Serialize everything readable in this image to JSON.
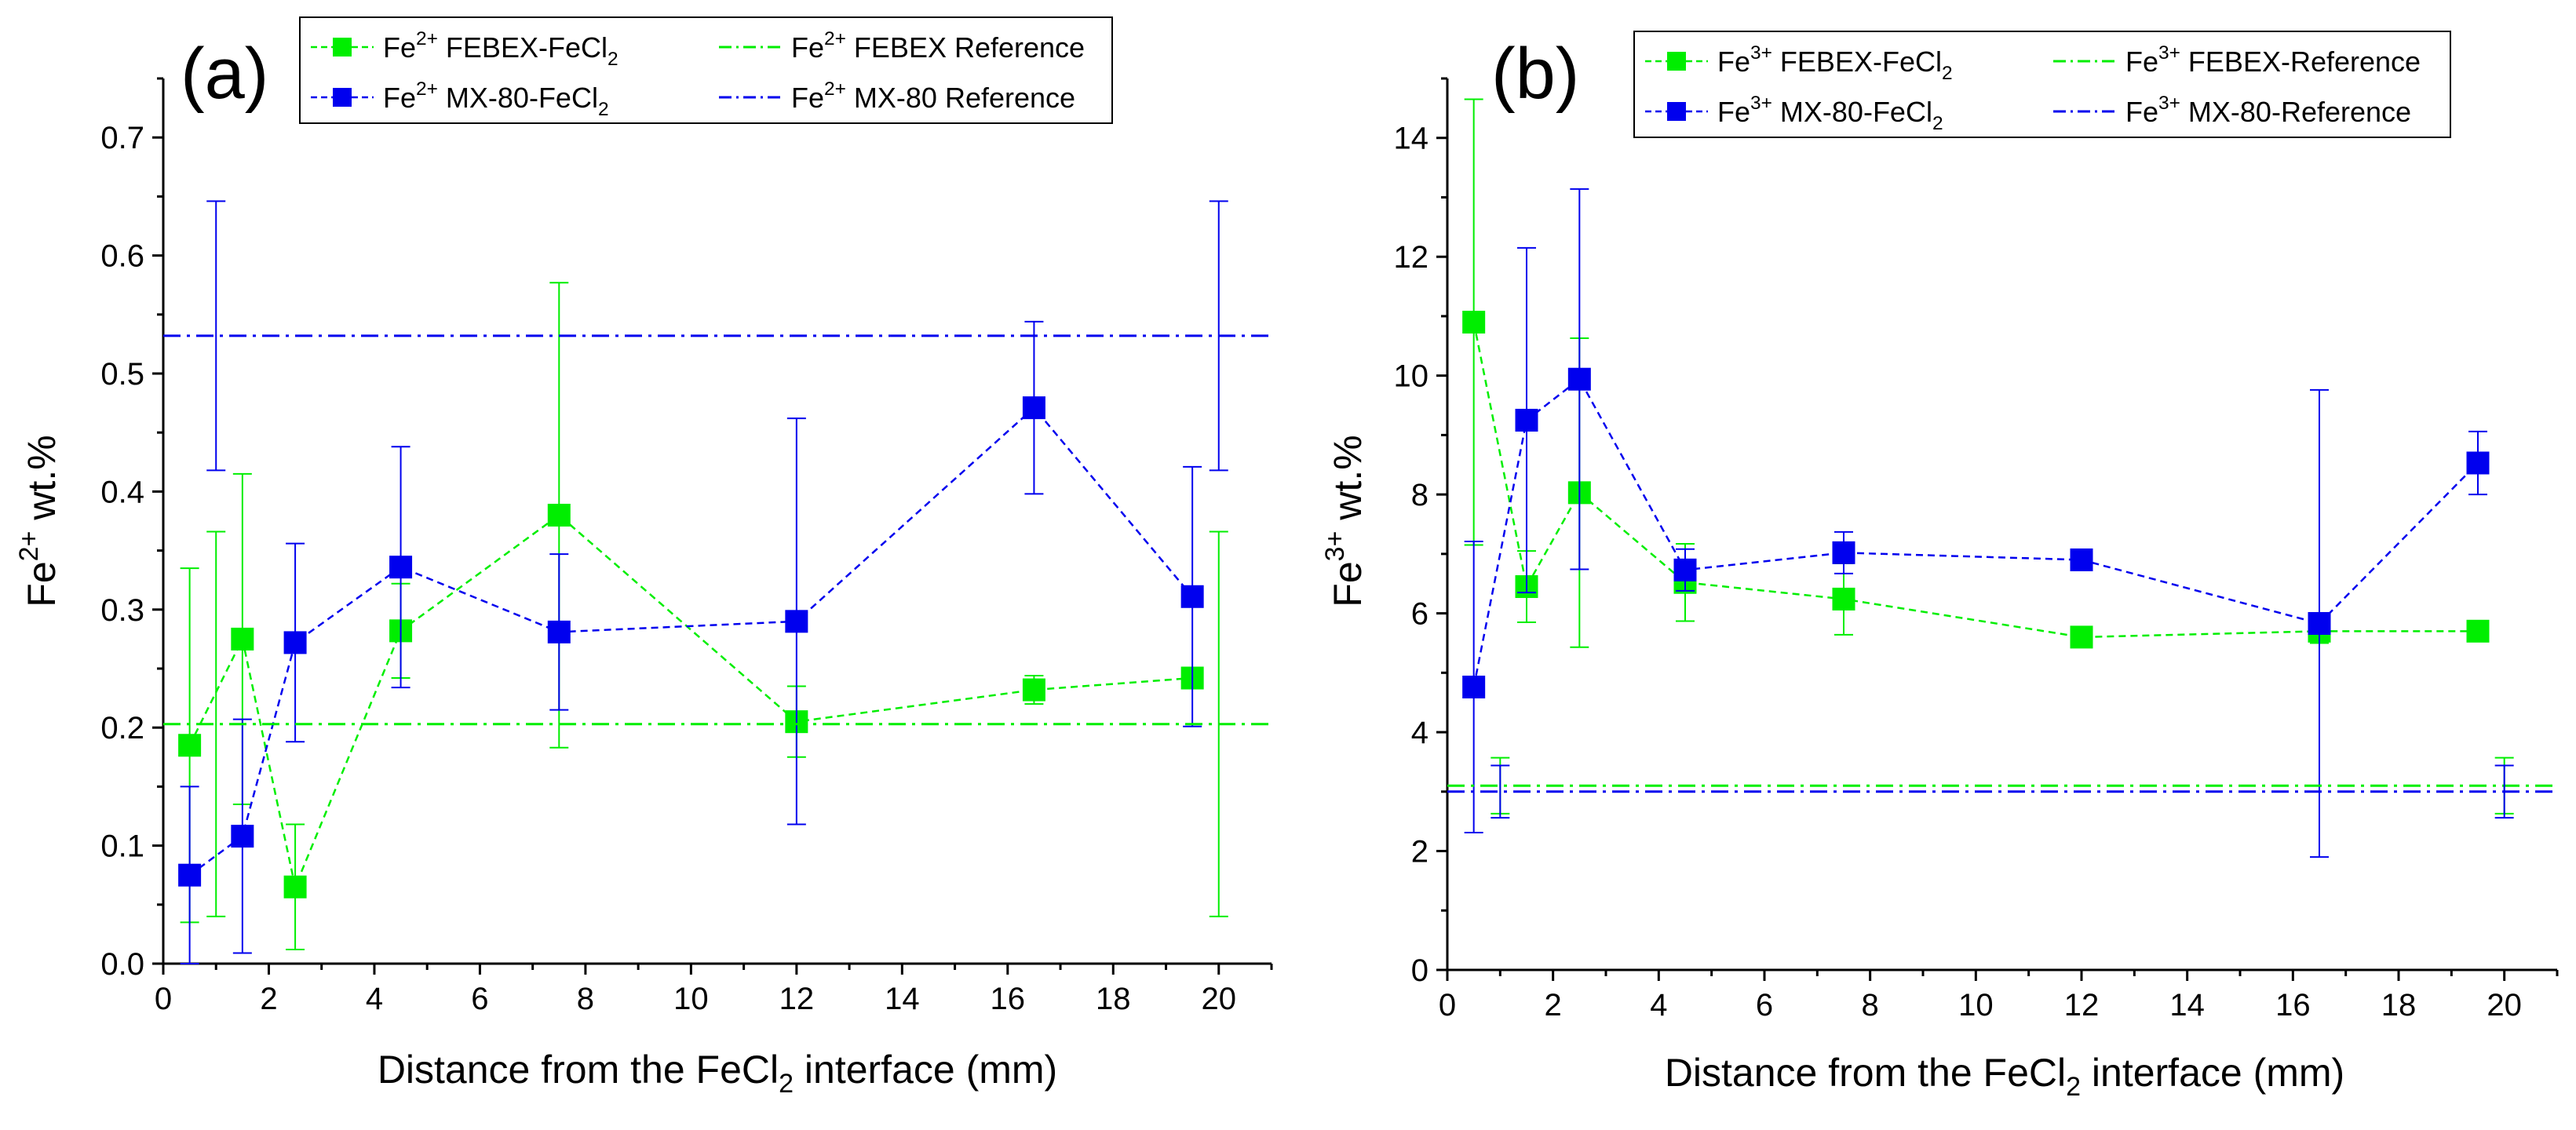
{
  "chart_data": [
    {
      "type": "scatter",
      "panel_label": "(a)",
      "xlabel_prefix": "Distance from the FeCl",
      "xlabel_sub": "2",
      "xlabel_suffix": " interface (mm)",
      "ylabel_base": "Fe",
      "ylabel_sup": "2+",
      "ylabel_suffix": " wt.%",
      "xlim": [
        0,
        21
      ],
      "ylim": [
        0,
        0.75
      ],
      "xticks": [
        0,
        2,
        4,
        6,
        8,
        10,
        12,
        14,
        16,
        18,
        20
      ],
      "xtick_labels": [
        "0",
        "2",
        "4",
        "6",
        "8",
        "10",
        "12",
        "14",
        "16",
        "18",
        "20"
      ],
      "yticks": [
        0.0,
        0.1,
        0.2,
        0.3,
        0.4,
        0.5,
        0.6,
        0.7
      ],
      "ytick_labels": [
        "0.0",
        "0.1",
        "0.2",
        "0.3",
        "0.4",
        "0.5",
        "0.6",
        "0.7"
      ],
      "legend_position": "top-center",
      "series": [
        {
          "base": "Fe",
          "sup": "2+",
          "rest": " FEBEX-FeCl",
          "sub": "2",
          "color": "#00ee00",
          "style": "markers-dashed",
          "x": [
            0.5,
            1.5,
            2.5,
            4.5,
            7.5,
            12,
            16.5,
            19.5
          ],
          "y": [
            0.185,
            0.275,
            0.065,
            0.282,
            0.38,
            0.205,
            0.232,
            0.242
          ],
          "err": [
            0.15,
            0.14,
            0.053,
            0.04,
            0.197,
            0.03,
            0.012,
            0.0
          ]
        },
        {
          "base": "Fe",
          "sup": "2+",
          "rest": " MX-80-FeCl",
          "sub": "2",
          "color": "#0000ee",
          "style": "markers-dashed",
          "x": [
            0.5,
            1.5,
            2.5,
            4.5,
            7.5,
            12,
            16.5,
            19.5
          ],
          "y": [
            0.075,
            0.108,
            0.272,
            0.336,
            0.281,
            0.29,
            0.471,
            0.311
          ],
          "err": [
            0.075,
            0.099,
            0.084,
            0.102,
            0.066,
            0.172,
            0.073,
            0.11
          ]
        },
        {
          "base": "Fe",
          "sup": "2+",
          "rest": " FEBEX Reference",
          "sub": "",
          "color": "#00ee00",
          "style": "dash-dot-line",
          "value": 0.203,
          "ref_x": [
            1.0,
            20.0
          ],
          "ref_err": [
            0.163,
            0.163
          ]
        },
        {
          "base": "Fe",
          "sup": "2+",
          "rest": " MX-80 Reference",
          "sub": "",
          "color": "#0000ee",
          "style": "dash-dot-line",
          "value": 0.532,
          "ref_x": [
            1.0,
            20.0
          ],
          "ref_err": [
            0.114,
            0.114
          ]
        }
      ]
    },
    {
      "type": "scatter",
      "panel_label": "(b)",
      "xlabel_prefix": "Distance from the FeCl",
      "xlabel_sub": "2",
      "xlabel_suffix": " interface (mm)",
      "ylabel_base": "Fe",
      "ylabel_sup": "3+",
      "ylabel_suffix": " wt.%",
      "xlim": [
        0,
        21
      ],
      "ylim": [
        0,
        15
      ],
      "xticks": [
        0,
        2,
        4,
        6,
        8,
        10,
        12,
        14,
        16,
        18,
        20
      ],
      "xtick_labels": [
        "0",
        "2",
        "4",
        "6",
        "8",
        "10",
        "12",
        "14",
        "16",
        "18",
        "20"
      ],
      "yticks": [
        0,
        2,
        4,
        6,
        8,
        10,
        12,
        14
      ],
      "ytick_labels": [
        "0",
        "2",
        "4",
        "6",
        "8",
        "10",
        "12",
        "14"
      ],
      "legend_position": "top-center",
      "series": [
        {
          "base": "Fe",
          "sup": "3+",
          "rest": " FEBEX-FeCl",
          "sub": "2",
          "color": "#00ee00",
          "style": "markers-dashed",
          "x": [
            0.5,
            1.5,
            2.5,
            4.5,
            7.5,
            12,
            16.5,
            19.5
          ],
          "y": [
            10.9,
            6.45,
            8.03,
            6.52,
            6.24,
            5.6,
            5.7,
            5.7
          ],
          "err": [
            3.75,
            0.6,
            2.6,
            0.65,
            0.6,
            0.12,
            0.2,
            0.0
          ]
        },
        {
          "base": "Fe",
          "sup": "3+",
          "rest": " MX-80-FeCl",
          "sub": "2",
          "color": "#0000ee",
          "style": "markers-dashed",
          "x": [
            0.5,
            1.5,
            2.5,
            4.5,
            7.5,
            12,
            16.5,
            19.5
          ],
          "y": [
            4.76,
            9.25,
            9.94,
            6.73,
            7.02,
            6.9,
            5.83,
            8.53
          ],
          "err": [
            2.45,
            2.9,
            3.2,
            0.35,
            0.35,
            0.0,
            3.93,
            0.53
          ]
        },
        {
          "base": "Fe",
          "sup": "3+",
          "rest": " FEBEX-Reference",
          "sub": "",
          "color": "#00ee00",
          "style": "dash-dot-line",
          "value": 3.1,
          "ref_x": [
            1.0,
            20.0
          ],
          "ref_err": [
            0.47,
            0.47
          ]
        },
        {
          "base": "Fe",
          "sup": "3+",
          "rest": " MX-80-Reference",
          "sub": "",
          "color": "#0000ee",
          "style": "dash-dot-line",
          "value": 3.0,
          "ref_x": [
            1.0,
            20.0
          ],
          "ref_err": [
            0.44,
            0.44
          ]
        }
      ]
    }
  ]
}
